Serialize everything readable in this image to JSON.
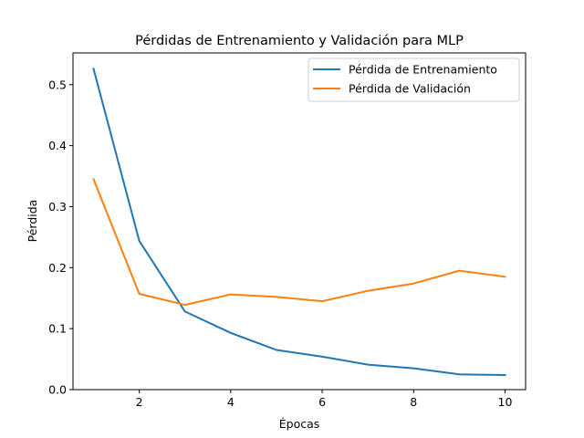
{
  "chart_data": {
    "type": "line",
    "title": "Pérdidas de Entrenamiento y Validación para MLP",
    "xlabel": "Épocas",
    "ylabel": "Pérdida",
    "x": [
      1,
      2,
      3,
      4,
      5,
      6,
      7,
      8,
      9,
      10
    ],
    "xlim": [
      0.55,
      10.45
    ],
    "ylim": [
      0.0,
      0.552
    ],
    "xticks": [
      2,
      4,
      6,
      8,
      10
    ],
    "yticks": [
      0.0,
      0.1,
      0.2,
      0.3,
      0.4,
      0.5
    ],
    "xtick_labels": [
      "2",
      "4",
      "6",
      "8",
      "10"
    ],
    "ytick_labels": [
      "0.0",
      "0.1",
      "0.2",
      "0.3",
      "0.4",
      "0.5"
    ],
    "grid": false,
    "legend_position": "top-right",
    "series": [
      {
        "name": "Pérdida de Entrenamiento",
        "color": "#1f77b4",
        "values": [
          0.526,
          0.244,
          0.128,
          0.093,
          0.065,
          0.054,
          0.041,
          0.035,
          0.025,
          0.024
        ]
      },
      {
        "name": "Pérdida de Validación",
        "color": "#ff7f0e",
        "values": [
          0.345,
          0.157,
          0.139,
          0.156,
          0.152,
          0.145,
          0.162,
          0.174,
          0.195,
          0.185
        ]
      }
    ]
  }
}
